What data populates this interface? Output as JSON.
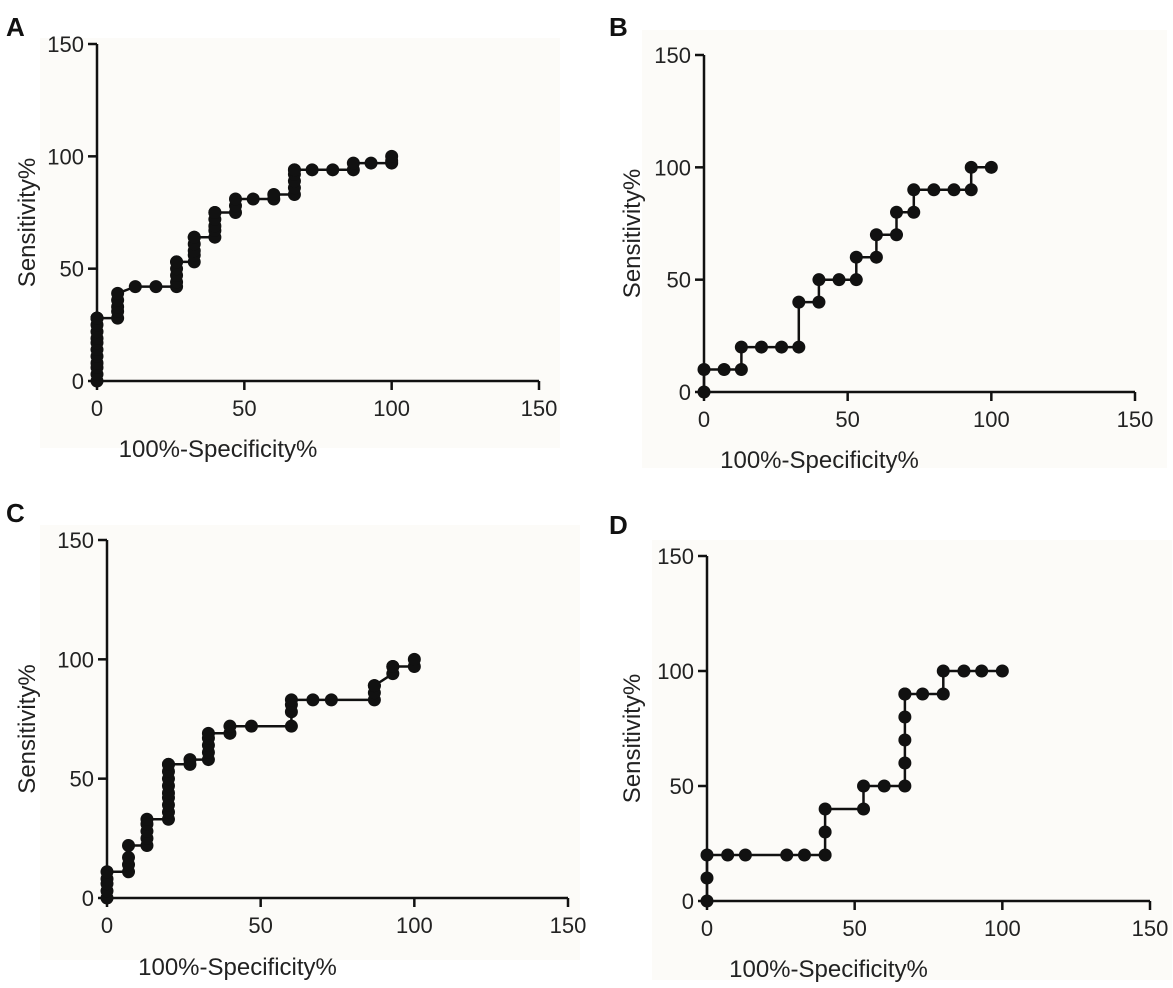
{
  "chart_data": [
    {
      "panel": "A",
      "type": "line",
      "xlabel": "100%-Specificity%",
      "ylabel": "Sensitivity%",
      "xlim": [
        0,
        150
      ],
      "ylim": [
        0,
        150
      ],
      "xticks": [
        0,
        50,
        100,
        150
      ],
      "yticks": [
        0,
        50,
        100,
        150
      ],
      "line_color": "#111111",
      "marker": "filled-circle",
      "series": [
        {
          "x": [
            0,
            0,
            0,
            0,
            0,
            0,
            0,
            0,
            0,
            0,
            0,
            0,
            0,
            0,
            7,
            7,
            7,
            7,
            7,
            13,
            20,
            27,
            27,
            27,
            27,
            27,
            27,
            33,
            33,
            33,
            33,
            33,
            33,
            40,
            40,
            40,
            40,
            40,
            40,
            47,
            47,
            47,
            53,
            60,
            60,
            67,
            67,
            67,
            67,
            67,
            67,
            73,
            80,
            87,
            87,
            93,
            100,
            100,
            100
          ],
          "y": [
            0,
            3,
            6,
            8,
            11,
            14,
            17,
            19,
            22,
            25,
            28,
            28,
            28,
            28,
            28,
            31,
            33,
            36,
            39,
            42,
            42,
            42,
            44,
            47,
            50,
            53,
            53,
            53,
            56,
            58,
            61,
            64,
            64,
            64,
            67,
            69,
            72,
            75,
            75,
            75,
            78,
            81,
            81,
            81,
            83,
            83,
            86,
            89,
            92,
            94,
            94,
            94,
            94,
            94,
            97,
            97,
            97,
            98,
            100
          ]
        }
      ]
    },
    {
      "panel": "B",
      "type": "line",
      "xlabel": "100%-Specificity%",
      "ylabel": "Sensitivity%",
      "xlim": [
        0,
        150
      ],
      "ylim": [
        0,
        150
      ],
      "xticks": [
        0,
        50,
        100,
        150
      ],
      "yticks": [
        0,
        50,
        100,
        150
      ],
      "line_color": "#111111",
      "marker": "filled-circle",
      "series": [
        {
          "x": [
            0,
            0,
            7,
            13,
            13,
            20,
            27,
            33,
            33,
            40,
            40,
            47,
            53,
            53,
            60,
            60,
            67,
            67,
            73,
            73,
            80,
            87,
            93,
            93,
            100
          ],
          "y": [
            0,
            10,
            10,
            10,
            20,
            20,
            20,
            20,
            40,
            40,
            50,
            50,
            50,
            60,
            60,
            70,
            70,
            80,
            80,
            90,
            90,
            90,
            90,
            100,
            100
          ]
        }
      ]
    },
    {
      "panel": "C",
      "type": "line",
      "xlabel": "100%-Specificity%",
      "ylabel": "Sensitivity%",
      "xlim": [
        0,
        150
      ],
      "ylim": [
        0,
        150
      ],
      "xticks": [
        0,
        50,
        100,
        150
      ],
      "yticks": [
        0,
        50,
        100,
        150
      ],
      "line_color": "#111111",
      "marker": "filled-circle",
      "series": [
        {
          "x": [
            0,
            0,
            0,
            0,
            0,
            7,
            7,
            7,
            7,
            13,
            13,
            13,
            13,
            13,
            20,
            20,
            20,
            20,
            20,
            20,
            20,
            20,
            20,
            20,
            27,
            27,
            33,
            33,
            33,
            33,
            33,
            40,
            40,
            47,
            60,
            60,
            60,
            60,
            67,
            73,
            87,
            87,
            87,
            87,
            93,
            93,
            93,
            100,
            100
          ],
          "y": [
            0,
            3,
            6,
            8,
            11,
            11,
            14,
            17,
            22,
            22,
            25,
            28,
            31,
            33,
            33,
            36,
            39,
            42,
            44,
            47,
            50,
            53,
            56,
            56,
            56,
            58,
            58,
            61,
            64,
            67,
            69,
            69,
            72,
            72,
            72,
            78,
            81,
            83,
            83,
            83,
            83,
            86,
            89,
            89,
            94,
            97,
            97,
            97,
            100
          ]
        }
      ]
    },
    {
      "panel": "D",
      "type": "line",
      "xlabel": "100%-Specificity%",
      "ylabel": "Sensitivity%",
      "xlim": [
        0,
        150
      ],
      "ylim": [
        0,
        150
      ],
      "xticks": [
        0,
        50,
        100,
        150
      ],
      "yticks": [
        0,
        50,
        100,
        150
      ],
      "line_color": "#111111",
      "marker": "filled-circle",
      "series": [
        {
          "x": [
            0,
            0,
            0,
            7,
            13,
            27,
            33,
            40,
            40,
            40,
            53,
            53,
            60,
            67,
            67,
            67,
            67,
            67,
            67,
            73,
            80,
            80,
            87,
            93,
            100
          ],
          "y": [
            0,
            10,
            20,
            20,
            20,
            20,
            20,
            20,
            30,
            40,
            40,
            50,
            50,
            50,
            60,
            70,
            80,
            90,
            90,
            90,
            90,
            100,
            100,
            100,
            100
          ]
        }
      ]
    }
  ]
}
